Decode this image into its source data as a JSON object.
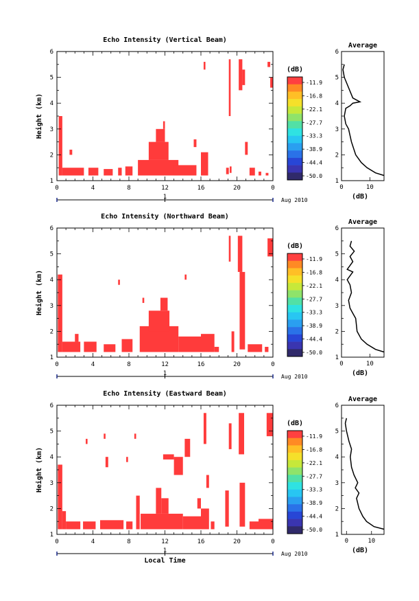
{
  "chart_data": [
    {
      "type": "heatmap",
      "title": "Echo Intensity (Vertical Beam)",
      "xlabel": "",
      "ylabel": "Height (km)",
      "x_ticks": [
        "0",
        "4",
        "8",
        "12",
        "16",
        "20",
        "0"
      ],
      "y_ticks": [
        "1",
        "2",
        "3",
        "4",
        "5",
        "6"
      ],
      "xlim": [
        0,
        24
      ],
      "ylim": [
        1,
        6
      ],
      "date_labels": {
        "day": "1",
        "month": "Aug 2010"
      },
      "colorbar": {
        "unit": "(dB)",
        "ticks": [
          "-11.9",
          "-16.8",
          "-22.1",
          "-27.7",
          "-33.3",
          "-38.9",
          "-44.4",
          "-50.0"
        ]
      },
      "cell_color": "#ff3b3b",
      "echo_regions": [
        {
          "x0": 0.2,
          "x1": 0.6,
          "y0": 1.2,
          "y1": 3.5
        },
        {
          "x0": 0.6,
          "x1": 3.0,
          "y0": 1.2,
          "y1": 1.5
        },
        {
          "x0": 1.4,
          "x1": 1.7,
          "y0": 2.0,
          "y1": 2.2
        },
        {
          "x0": 3.5,
          "x1": 4.6,
          "y0": 1.2,
          "y1": 1.5
        },
        {
          "x0": 5.2,
          "x1": 6.2,
          "y0": 1.2,
          "y1": 1.45
        },
        {
          "x0": 6.8,
          "x1": 7.2,
          "y0": 1.2,
          "y1": 1.5
        },
        {
          "x0": 7.6,
          "x1": 8.4,
          "y0": 1.2,
          "y1": 1.55
        },
        {
          "x0": 9.0,
          "x1": 13.5,
          "y0": 1.2,
          "y1": 1.8
        },
        {
          "x0": 10.2,
          "x1": 12.4,
          "y0": 1.8,
          "y1": 2.5
        },
        {
          "x0": 11.0,
          "x1": 12.0,
          "y0": 2.5,
          "y1": 3.0
        },
        {
          "x0": 11.8,
          "x1": 12.0,
          "y0": 3.0,
          "y1": 3.3
        },
        {
          "x0": 13.0,
          "x1": 15.5,
          "y0": 1.2,
          "y1": 1.6
        },
        {
          "x0": 15.2,
          "x1": 15.5,
          "y0": 2.3,
          "y1": 2.6
        },
        {
          "x0": 16.0,
          "x1": 16.8,
          "y0": 1.2,
          "y1": 2.1
        },
        {
          "x0": 16.3,
          "x1": 16.5,
          "y0": 5.3,
          "y1": 5.6
        },
        {
          "x0": 18.8,
          "x1": 19.1,
          "y0": 1.25,
          "y1": 1.5
        },
        {
          "x0": 19.1,
          "x1": 19.3,
          "y0": 3.5,
          "y1": 5.7
        },
        {
          "x0": 19.2,
          "x1": 19.4,
          "y0": 1.3,
          "y1": 1.55
        },
        {
          "x0": 20.2,
          "x1": 20.6,
          "y0": 4.5,
          "y1": 5.7
        },
        {
          "x0": 20.6,
          "x1": 20.9,
          "y0": 4.7,
          "y1": 5.3
        },
        {
          "x0": 20.9,
          "x1": 21.2,
          "y0": 2.0,
          "y1": 2.5
        },
        {
          "x0": 21.4,
          "x1": 22.0,
          "y0": 1.2,
          "y1": 1.5
        },
        {
          "x0": 22.4,
          "x1": 22.7,
          "y0": 1.2,
          "y1": 1.35
        },
        {
          "x0": 23.4,
          "x1": 23.7,
          "y0": 5.4,
          "y1": 5.6
        },
        {
          "x0": 23.7,
          "x1": 24.0,
          "y0": 4.6,
          "y1": 5.0
        },
        {
          "x0": 23.2,
          "x1": 23.5,
          "y0": 1.2,
          "y1": 1.3
        }
      ],
      "average_profile": {
        "title": "Average",
        "xlabel": "(dB)",
        "x_ticks": [
          "0",
          "10"
        ],
        "xlim": [
          0,
          15
        ],
        "y_ticks": [
          "1",
          "2",
          "3",
          "4",
          "5",
          "6"
        ],
        "ylim": [
          1,
          6
        ],
        "points": [
          [
            15,
            1.2
          ],
          [
            12,
            1.3
          ],
          [
            9,
            1.5
          ],
          [
            7,
            1.7
          ],
          [
            5,
            2
          ],
          [
            3.5,
            2.5
          ],
          [
            2.5,
            3
          ],
          [
            1.5,
            3.2
          ],
          [
            1,
            3.5
          ],
          [
            1.5,
            3.8
          ],
          [
            3,
            3.9
          ],
          [
            4,
            4.0
          ],
          [
            6.5,
            4.05
          ],
          [
            4,
            4.2
          ],
          [
            2.5,
            4.6
          ],
          [
            1,
            5.0
          ],
          [
            0.5,
            5.3
          ],
          [
            1,
            5.5
          ]
        ]
      }
    },
    {
      "type": "heatmap",
      "title": "Echo Intensity (Northward Beam)",
      "xlabel": "",
      "ylabel": "Height (km)",
      "x_ticks": [
        "0",
        "4",
        "8",
        "12",
        "16",
        "20",
        "0"
      ],
      "y_ticks": [
        "1",
        "2",
        "3",
        "4",
        "5",
        "6"
      ],
      "xlim": [
        0,
        24
      ],
      "ylim": [
        1,
        6
      ],
      "date_labels": {
        "day": "1",
        "month": "Aug 2010"
      },
      "colorbar": {
        "unit": "(dB)",
        "ticks": [
          "-11.9",
          "-16.8",
          "-22.1",
          "-27.7",
          "-33.3",
          "-38.9",
          "-44.4",
          "-50.0"
        ]
      },
      "cell_color": "#ff3b3b",
      "echo_regions": [
        {
          "x0": 0.1,
          "x1": 0.6,
          "y0": 1.2,
          "y1": 4.2
        },
        {
          "x0": 0.6,
          "x1": 2.6,
          "y0": 1.2,
          "y1": 1.6
        },
        {
          "x0": 2.0,
          "x1": 2.4,
          "y0": 1.6,
          "y1": 1.9
        },
        {
          "x0": 3.0,
          "x1": 4.4,
          "y0": 1.2,
          "y1": 1.6
        },
        {
          "x0": 5.2,
          "x1": 6.5,
          "y0": 1.2,
          "y1": 1.5
        },
        {
          "x0": 6.8,
          "x1": 7.0,
          "y0": 3.8,
          "y1": 4.0
        },
        {
          "x0": 7.2,
          "x1": 8.4,
          "y0": 1.2,
          "y1": 1.7
        },
        {
          "x0": 9.2,
          "x1": 13.5,
          "y0": 1.2,
          "y1": 2.2
        },
        {
          "x0": 9.5,
          "x1": 9.7,
          "y0": 3.1,
          "y1": 3.3
        },
        {
          "x0": 10.2,
          "x1": 12.5,
          "y0": 2.0,
          "y1": 2.8
        },
        {
          "x0": 11.5,
          "x1": 12.3,
          "y0": 2.8,
          "y1": 3.3
        },
        {
          "x0": 13.5,
          "x1": 16.0,
          "y0": 1.2,
          "y1": 1.8
        },
        {
          "x0": 14.2,
          "x1": 14.4,
          "y0": 4.0,
          "y1": 4.2
        },
        {
          "x0": 16.0,
          "x1": 17.5,
          "y0": 1.2,
          "y1": 1.9
        },
        {
          "x0": 17.5,
          "x1": 18.0,
          "y0": 1.2,
          "y1": 1.4
        },
        {
          "x0": 19.1,
          "x1": 19.3,
          "y0": 4.7,
          "y1": 5.7
        },
        {
          "x0": 19.4,
          "x1": 19.7,
          "y0": 1.2,
          "y1": 2.0
        },
        {
          "x0": 20.1,
          "x1": 20.6,
          "y0": 4.3,
          "y1": 5.7
        },
        {
          "x0": 20.3,
          "x1": 20.9,
          "y0": 1.3,
          "y1": 4.3
        },
        {
          "x0": 21.2,
          "x1": 22.8,
          "y0": 1.2,
          "y1": 1.5
        },
        {
          "x0": 23.1,
          "x1": 23.5,
          "y0": 1.2,
          "y1": 1.4
        },
        {
          "x0": 23.4,
          "x1": 24.0,
          "y0": 4.9,
          "y1": 5.6
        }
      ],
      "average_profile": {
        "title": "Average",
        "xlabel": "(dB)",
        "x_ticks": [
          "0",
          "10"
        ],
        "xlim": [
          0,
          15
        ],
        "y_ticks": [
          "1",
          "2",
          "3",
          "4",
          "5",
          "6"
        ],
        "ylim": [
          1,
          6
        ],
        "points": [
          [
            15,
            1.2
          ],
          [
            12,
            1.3
          ],
          [
            9,
            1.5
          ],
          [
            7,
            1.7
          ],
          [
            5.5,
            2
          ],
          [
            5,
            2.5
          ],
          [
            4,
            2.7
          ],
          [
            3,
            2.9
          ],
          [
            2.5,
            3.2
          ],
          [
            3.5,
            3.5
          ],
          [
            3,
            3.8
          ],
          [
            2,
            4.0
          ],
          [
            4,
            4.3
          ],
          [
            2,
            4.4
          ],
          [
            4,
            4.7
          ],
          [
            3,
            4.9
          ],
          [
            4.5,
            5.1
          ],
          [
            3,
            5.3
          ],
          [
            3.5,
            5.5
          ]
        ]
      }
    },
    {
      "type": "heatmap",
      "title": "Echo Intensity (Eastward Beam)",
      "xlabel": "Local Time",
      "ylabel": "Height (km)",
      "x_ticks": [
        "0",
        "4",
        "8",
        "12",
        "16",
        "20",
        "0"
      ],
      "y_ticks": [
        "1",
        "2",
        "3",
        "4",
        "5",
        "6"
      ],
      "xlim": [
        0,
        24
      ],
      "ylim": [
        1,
        6
      ],
      "date_labels": {
        "day": "1",
        "month": "Aug 2010"
      },
      "colorbar": {
        "unit": "(dB)",
        "ticks": [
          "-11.9",
          "-16.8",
          "-22.1",
          "-27.7",
          "-33.3",
          "-38.9",
          "-44.4",
          "-50.0"
        ]
      },
      "cell_color": "#ff3b3b",
      "echo_regions": [
        {
          "x0": 0.1,
          "x1": 0.6,
          "y0": 1.2,
          "y1": 3.7
        },
        {
          "x0": 0.6,
          "x1": 1.0,
          "y0": 1.2,
          "y1": 1.9
        },
        {
          "x0": 1.0,
          "x1": 2.6,
          "y0": 1.2,
          "y1": 1.5
        },
        {
          "x0": 2.9,
          "x1": 4.3,
          "y0": 1.2,
          "y1": 1.5
        },
        {
          "x0": 3.2,
          "x1": 3.4,
          "y0": 4.5,
          "y1": 4.7
        },
        {
          "x0": 4.8,
          "x1": 7.4,
          "y0": 1.2,
          "y1": 1.55
        },
        {
          "x0": 5.2,
          "x1": 5.4,
          "y0": 4.7,
          "y1": 4.9
        },
        {
          "x0": 5.4,
          "x1": 5.7,
          "y0": 3.6,
          "y1": 4.0
        },
        {
          "x0": 7.7,
          "x1": 7.9,
          "y0": 3.8,
          "y1": 4.0
        },
        {
          "x0": 7.7,
          "x1": 8.4,
          "y0": 1.2,
          "y1": 1.5
        },
        {
          "x0": 8.6,
          "x1": 8.8,
          "y0": 4.7,
          "y1": 4.9
        },
        {
          "x0": 8.8,
          "x1": 9.2,
          "y0": 1.2,
          "y1": 2.5
        },
        {
          "x0": 9.3,
          "x1": 14.0,
          "y0": 1.2,
          "y1": 1.8
        },
        {
          "x0": 11.0,
          "x1": 11.6,
          "y0": 1.8,
          "y1": 2.8
        },
        {
          "x0": 11.6,
          "x1": 12.4,
          "y0": 1.8,
          "y1": 2.4
        },
        {
          "x0": 11.8,
          "x1": 13.0,
          "y0": 3.9,
          "y1": 4.1
        },
        {
          "x0": 13.0,
          "x1": 14.0,
          "y0": 3.3,
          "y1": 4.0
        },
        {
          "x0": 14.0,
          "x1": 16.0,
          "y0": 1.2,
          "y1": 1.7
        },
        {
          "x0": 14.2,
          "x1": 14.8,
          "y0": 4.0,
          "y1": 4.7
        },
        {
          "x0": 15.6,
          "x1": 16.0,
          "y0": 2.0,
          "y1": 2.4
        },
        {
          "x0": 16.0,
          "x1": 16.9,
          "y0": 1.2,
          "y1": 2.0
        },
        {
          "x0": 16.3,
          "x1": 16.6,
          "y0": 4.5,
          "y1": 5.7
        },
        {
          "x0": 16.6,
          "x1": 16.9,
          "y0": 2.8,
          "y1": 3.3
        },
        {
          "x0": 17.1,
          "x1": 17.5,
          "y0": 1.2,
          "y1": 1.5
        },
        {
          "x0": 18.7,
          "x1": 19.1,
          "y0": 1.3,
          "y1": 2.7
        },
        {
          "x0": 19.1,
          "x1": 19.4,
          "y0": 4.3,
          "y1": 5.3
        },
        {
          "x0": 20.2,
          "x1": 20.8,
          "y0": 4.1,
          "y1": 5.7
        },
        {
          "x0": 20.3,
          "x1": 20.9,
          "y0": 1.3,
          "y1": 3.0
        },
        {
          "x0": 21.4,
          "x1": 22.4,
          "y0": 1.2,
          "y1": 1.5
        },
        {
          "x0": 22.4,
          "x1": 24.0,
          "y0": 1.2,
          "y1": 1.6
        },
        {
          "x0": 23.3,
          "x1": 24.0,
          "y0": 4.8,
          "y1": 5.7
        }
      ],
      "average_profile": {
        "title": "Average",
        "xlabel": "(dB)",
        "x_ticks": [
          "0",
          "10"
        ],
        "xlim": [
          -2,
          15
        ],
        "y_ticks": [
          "1",
          "2",
          "3",
          "4",
          "5",
          "6"
        ],
        "ylim": [
          1,
          6
        ],
        "points": [
          [
            15,
            1.2
          ],
          [
            11,
            1.3
          ],
          [
            8,
            1.5
          ],
          [
            6.5,
            1.7
          ],
          [
            5,
            2
          ],
          [
            4,
            2.4
          ],
          [
            5,
            2.6
          ],
          [
            3.5,
            2.8
          ],
          [
            4.5,
            3.0
          ],
          [
            3,
            3.3
          ],
          [
            2,
            3.6
          ],
          [
            1.5,
            4.0
          ],
          [
            2,
            4.3
          ],
          [
            1,
            4.6
          ],
          [
            0,
            5.0
          ],
          [
            -0.5,
            5.3
          ],
          [
            0,
            5.5
          ]
        ]
      }
    }
  ]
}
